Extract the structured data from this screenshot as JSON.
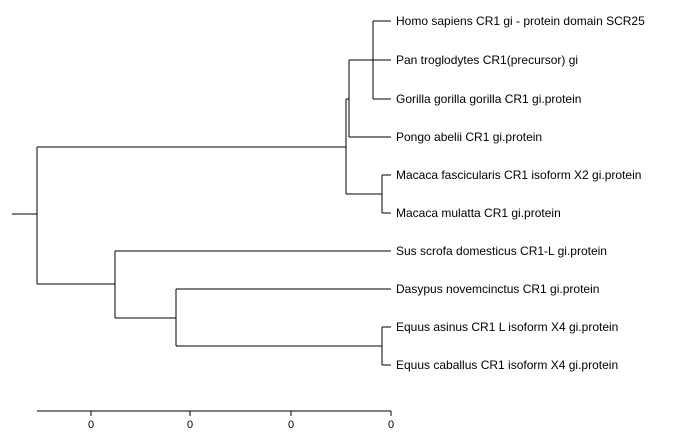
{
  "tree": {
    "leaves": [
      "Homo sapiens CR1 gi - protein domain SCR25",
      "Pan troglodytes CR1(precursor) gi",
      "Gorilla gorilla gorilla CR1 gi.protein",
      "Pongo abelii CR1 gi.protein",
      "Macaca fascicularis CR1 isoform X2 gi.protein",
      "Macaca mulatta CR1 gi.protein",
      "Sus scrofa domesticus CR1-L gi.protein",
      "Dasypus novemcinctus CR1 gi.protein",
      "Equus asinus CR1 L isoform X4 gi.protein",
      "Equus caballus CR1 isoform X4 gi.protein"
    ]
  },
  "scale": {
    "tick_labels": [
      "0",
      "0",
      "0",
      "0"
    ]
  }
}
